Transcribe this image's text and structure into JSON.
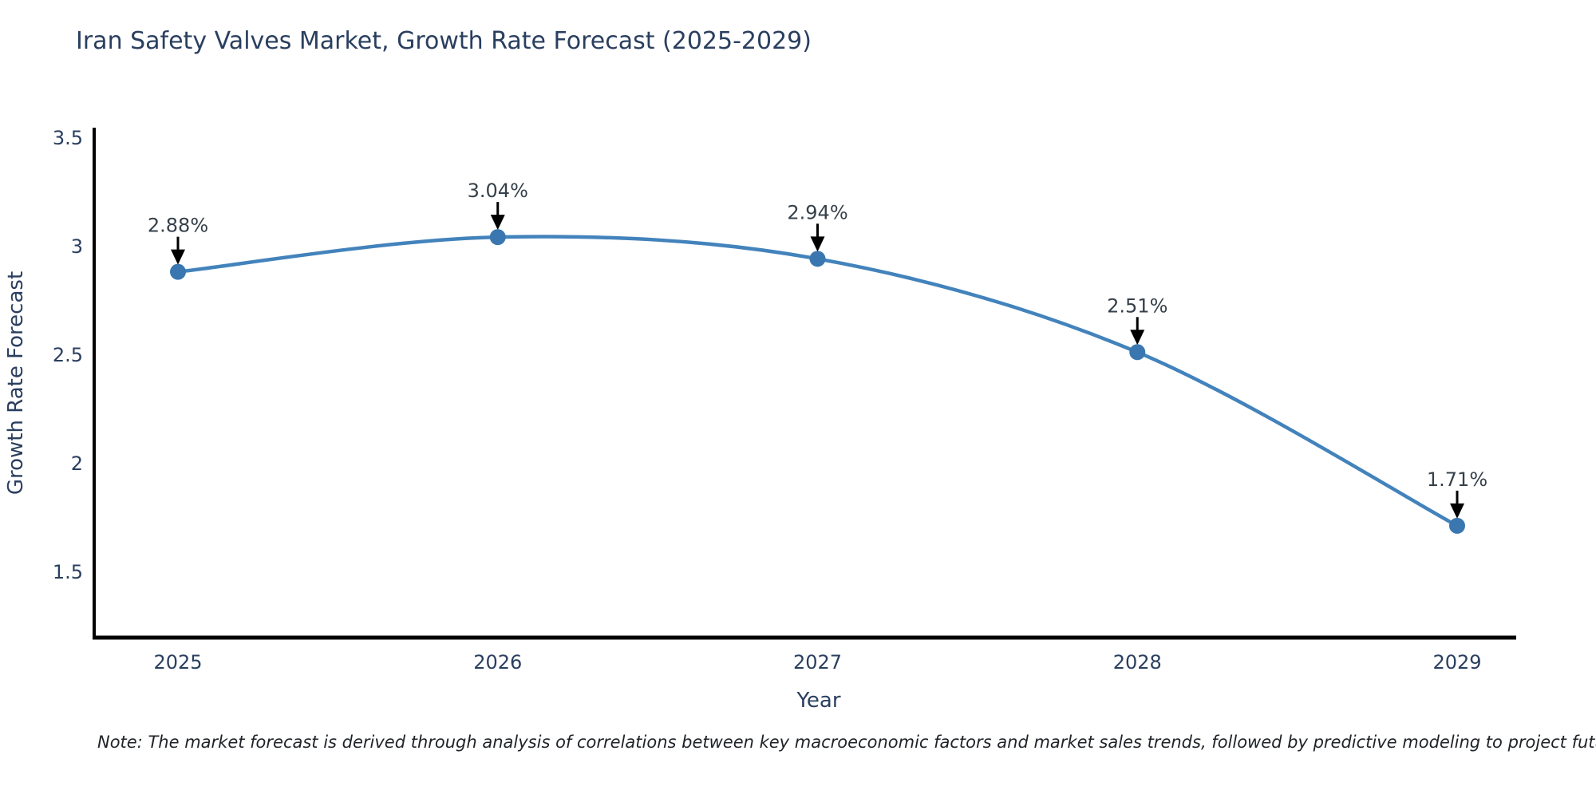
{
  "title": "Iran Safety Valves Market, Growth Rate Forecast (2025-2029)",
  "note": "Note: The market forecast is derived through analysis of correlations between key macroeconomic factors and market sales trends, followed by predictive modeling to project future sales",
  "chart_data": {
    "type": "line",
    "title": "Iran Safety Valves Market, Growth Rate Forecast (2025-2029)",
    "x": [
      2025,
      2026,
      2027,
      2028,
      2029
    ],
    "values": [
      2.88,
      3.04,
      2.94,
      2.51,
      1.71
    ],
    "point_labels": [
      "2.88%",
      "3.04%",
      "2.94%",
      "2.51%",
      "1.71%"
    ],
    "xticks": [
      "2025",
      "2026",
      "2027",
      "2028",
      "2029"
    ],
    "ytick_values": [
      3.5,
      3,
      2.5,
      2,
      1.5
    ],
    "ytick_labels": [
      "3.5",
      "3",
      "2.5",
      "2",
      "1.5"
    ],
    "xlabel": "Year",
    "ylabel": "Growth Rate Forecast",
    "ylim": [
      1.19,
      3.55
    ],
    "grid": false,
    "legend_position": "none",
    "line_color": "#4383bc",
    "marker_color": "#3a77b0",
    "axis_color": "#000000",
    "text_color": "#2a3f5f",
    "annotation_text_color": "#36404a",
    "annotation_arrow_color": "#000000"
  }
}
